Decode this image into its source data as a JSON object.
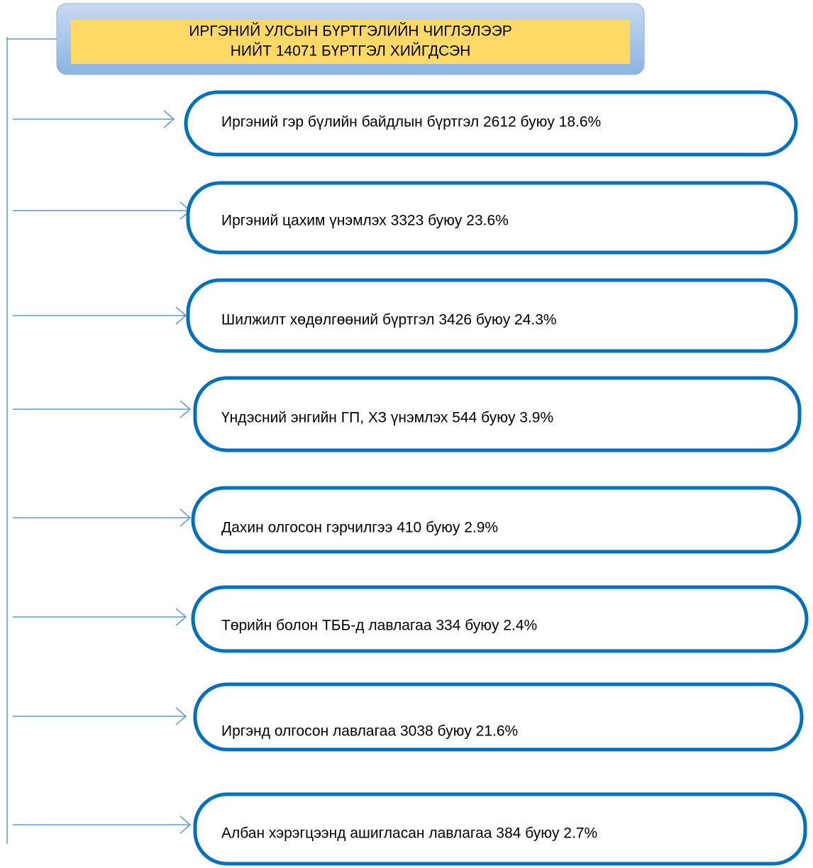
{
  "header": {
    "lines": [
      "ИРГЭНИЙ УЛСЫН БҮРТГЭЛИЙН ЧИГЛЭЛЭЭР",
      "НИЙТ 14071 БҮРТГЭЛ ХИЙГДСЭН"
    ]
  },
  "items": [
    "Иргэний гэр бүлийн байдлын бүртгэл 2612 буюу 18.6%",
    "Иргэний цахим үнэмлэх 3323 буюу 23.6%",
    "Шилжилт хөдөлгөөний бүртгэл 3426 буюу 24.3%",
    "Үндэсний энгийн ГП, ХЗ үнэмлэх 544 буюу 3.9%",
    "Дахин олгосон гэрчилгээ 410 буюу 2.9%",
    "Төрийн болон ТББ-д лавлагаа 334 буюу 2.4%",
    "Иргэнд олгосон лавлагаа 3038 буюу 21.6%",
    "Албан хэрэгцээнд ашигласан лавлагаа 384 буюу 2.7%"
  ]
}
